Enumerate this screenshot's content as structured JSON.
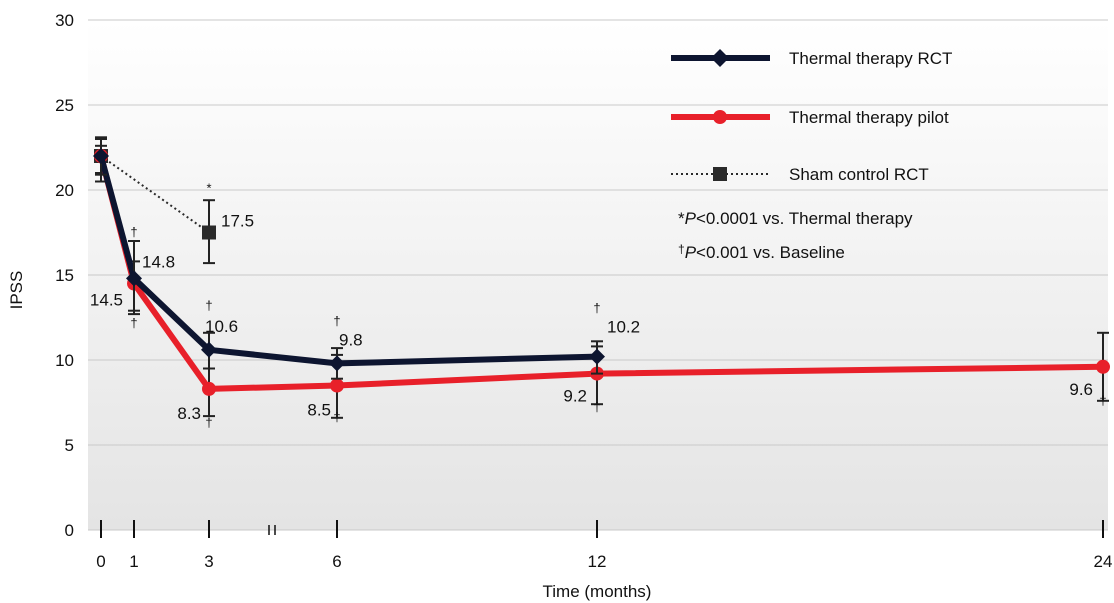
{
  "chart_data": {
    "type": "line",
    "xlabel": "Time (months)",
    "ylabel": "IPSS",
    "xlim": [
      0,
      24
    ],
    "ylim": [
      0,
      30
    ],
    "x_ticks": [
      0,
      1,
      3,
      6,
      12,
      24
    ],
    "y_ticks": [
      0,
      5,
      10,
      15,
      20,
      25,
      30
    ],
    "axis_break": "between 3 and 6",
    "grid": "horizontal",
    "legend_position": "top-right",
    "series": [
      {
        "name": "Thermal therapy RCT",
        "color": "#0d1530",
        "line_style": "solid",
        "marker": "diamond",
        "points": [
          {
            "x": 0,
            "y": 22.0,
            "err_low": 20.9,
            "err_high": 23.1,
            "label": "",
            "sym_above": "",
            "sym_below": ""
          },
          {
            "x": 1,
            "y": 14.8,
            "err_low": 12.9,
            "err_high": 17.0,
            "label": "14.8",
            "sym_above": "†",
            "sym_below": ""
          },
          {
            "x": 3,
            "y": 10.6,
            "err_low": 9.5,
            "err_high": 11.6,
            "label": "10.6",
            "sym_above": "†",
            "sym_below": ""
          },
          {
            "x": 6,
            "y": 9.8,
            "err_low": 8.9,
            "err_high": 10.7,
            "label": "9.8",
            "sym_above": "†",
            "sym_below": ""
          },
          {
            "x": 12,
            "y": 10.2,
            "err_low": 9.2,
            "err_high": 11.1,
            "label": "10.2",
            "sym_above": "†",
            "sym_below": ""
          }
        ]
      },
      {
        "name": "Thermal therapy pilot",
        "color": "#e8202a",
        "line_style": "solid",
        "marker": "circle",
        "points": [
          {
            "x": 0,
            "y": 22.0,
            "err_low": 20.5,
            "err_high": 22.6,
            "label": "",
            "sym_above": "",
            "sym_below": ""
          },
          {
            "x": 1,
            "y": 14.5,
            "err_low": 12.7,
            "err_high": 15.8,
            "label": "14.5",
            "sym_above": "",
            "sym_below": "†"
          },
          {
            "x": 3,
            "y": 8.3,
            "err_low": 6.7,
            "err_high": 9.5,
            "label": "8.3",
            "sym_above": "",
            "sym_below": "†"
          },
          {
            "x": 6,
            "y": 8.5,
            "err_low": 6.6,
            "err_high": 10.3,
            "label": "8.5",
            "sym_above": "",
            "sym_below": "†"
          },
          {
            "x": 12,
            "y": 9.2,
            "err_low": 7.4,
            "err_high": 10.8,
            "label": "9.2",
            "sym_above": "",
            "sym_below": "†"
          },
          {
            "x": 24,
            "y": 9.6,
            "err_low": 7.6,
            "err_high": 11.6,
            "label": "9.6",
            "sym_above": "",
            "sym_below": "†"
          }
        ]
      },
      {
        "name": "Sham control RCT",
        "color": "#2a2a2a",
        "line_style": "dotted",
        "marker": "square",
        "points": [
          {
            "x": 0,
            "y": 22.0,
            "err_low": 21.0,
            "err_high": 23.0,
            "label": "",
            "sym_above": "",
            "sym_below": ""
          },
          {
            "x": 3,
            "y": 17.5,
            "err_low": 15.7,
            "err_high": 19.4,
            "label": "17.5",
            "sym_above": "*",
            "sym_below": ""
          }
        ]
      }
    ],
    "annotations": [
      {
        "prefix": "*",
        "italic": "P",
        "rest": "<0.0001 vs. Thermal therapy"
      },
      {
        "prefix": "†",
        "italic": "P",
        "rest": "<0.001 vs. Baseline"
      }
    ]
  }
}
